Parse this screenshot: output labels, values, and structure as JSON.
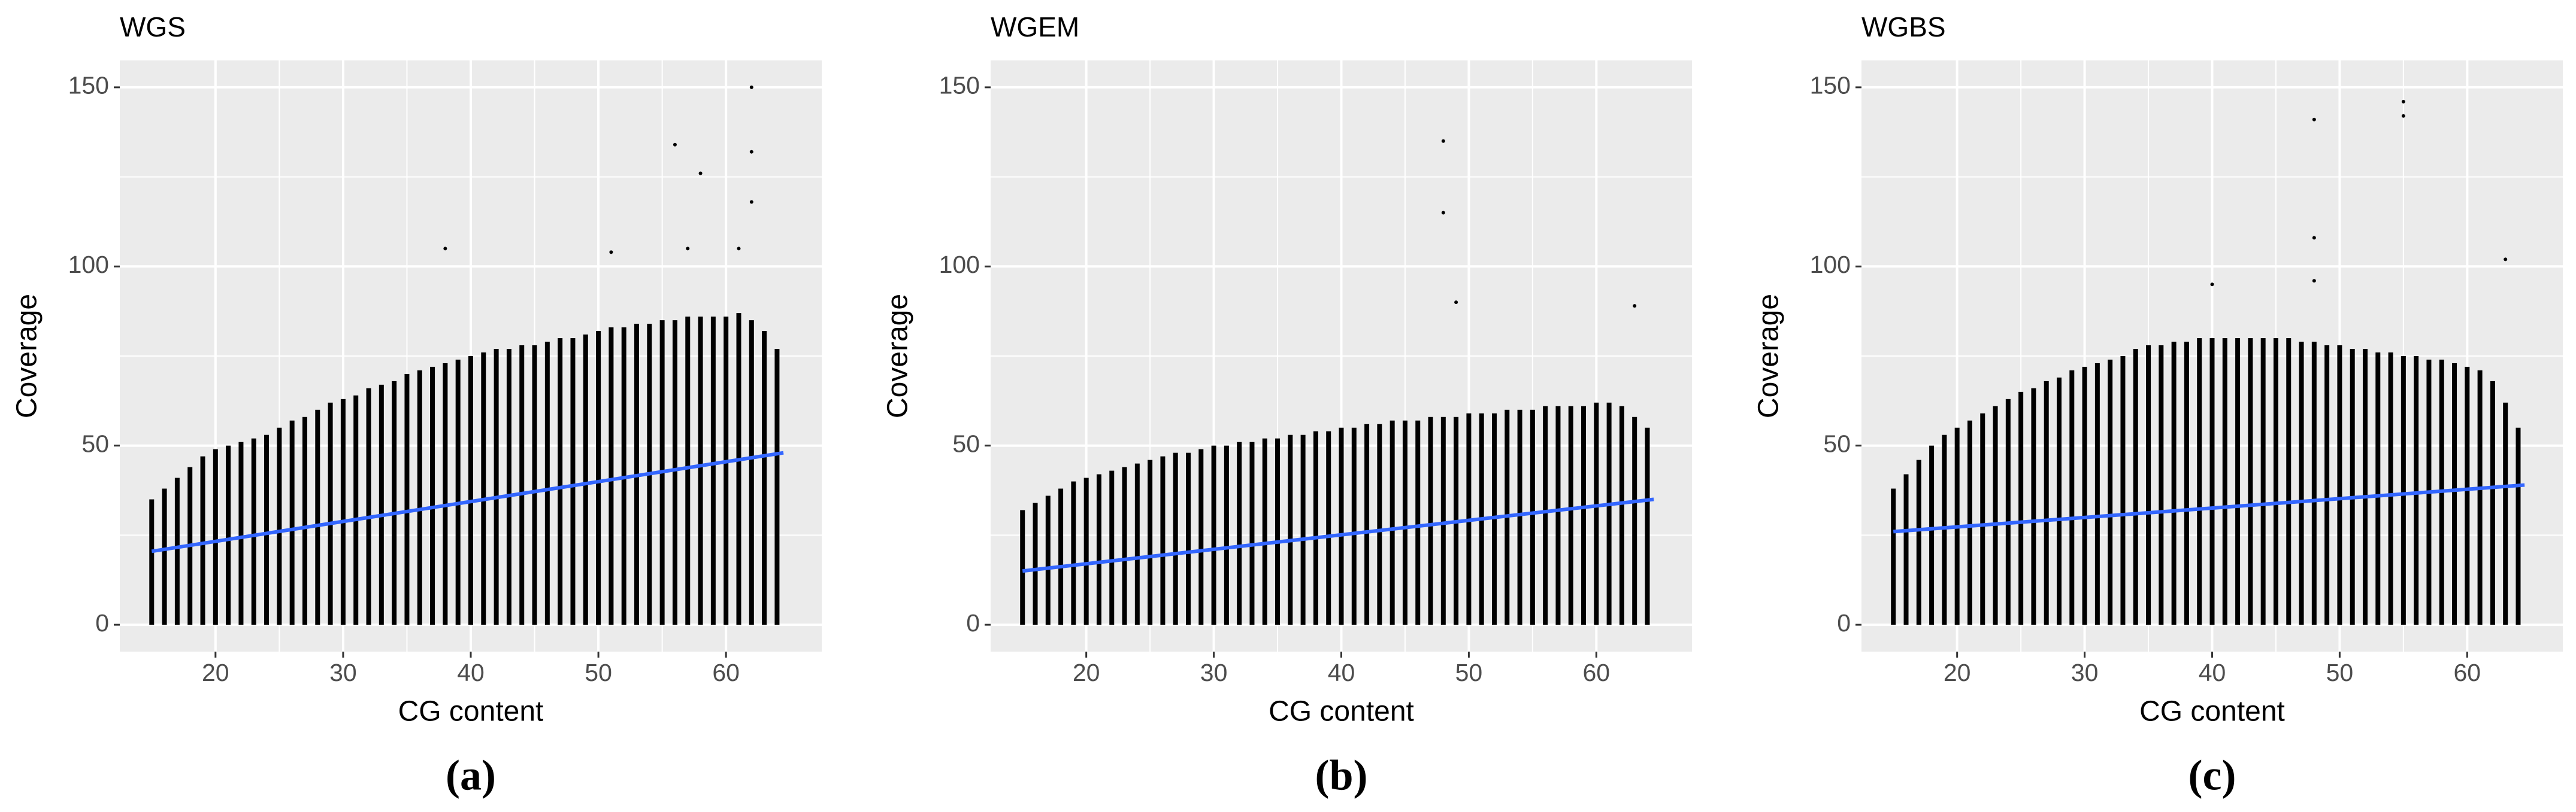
{
  "chart_data": [
    {
      "type": "scatter",
      "title": "WGS",
      "caption": "(a)",
      "xlabel": "CG content",
      "ylabel": "Coverage",
      "xlim": [
        12.5,
        67.5
      ],
      "ylim": [
        -7.5,
        157.5
      ],
      "xticks": [
        20,
        30,
        40,
        50,
        60
      ],
      "yticks": [
        0,
        50,
        100,
        150
      ],
      "grid": true,
      "point_color": "#000000",
      "fit_color": "#3366ff",
      "x": [
        15,
        16,
        17,
        18,
        19,
        20,
        21,
        22,
        23,
        24,
        25,
        26,
        27,
        28,
        29,
        30,
        31,
        32,
        33,
        34,
        35,
        36,
        37,
        38,
        39,
        40,
        41,
        42,
        43,
        44,
        45,
        46,
        47,
        48,
        49,
        50,
        51,
        52,
        53,
        54,
        55,
        56,
        57,
        58,
        59,
        60,
        61,
        62,
        63,
        64
      ],
      "high": [
        35,
        38,
        41,
        44,
        47,
        49,
        50,
        51,
        52,
        53,
        55,
        57,
        58,
        60,
        62,
        63,
        64,
        66,
        67,
        68,
        70,
        71,
        72,
        73,
        74,
        75,
        76,
        77,
        77,
        78,
        78,
        79,
        80,
        80,
        81,
        82,
        83,
        83,
        84,
        84,
        85,
        85,
        86,
        86,
        86,
        86,
        87,
        85,
        82,
        77
      ],
      "outliers_x": [
        38,
        51,
        56,
        58,
        62,
        62,
        62,
        57,
        61
      ],
      "outliers_y": [
        105,
        104,
        134,
        126,
        150,
        132,
        118,
        105,
        105
      ],
      "fit_x": [
        15,
        64.5
      ],
      "fit_y": [
        20.5,
        48
      ]
    },
    {
      "type": "scatter",
      "title": "WGEM",
      "caption": "(b)",
      "xlabel": "CG content",
      "ylabel": "Coverage",
      "xlim": [
        12.5,
        67.5
      ],
      "ylim": [
        -7.5,
        157.5
      ],
      "xticks": [
        20,
        30,
        40,
        50,
        60
      ],
      "yticks": [
        0,
        50,
        100,
        150
      ],
      "grid": true,
      "point_color": "#000000",
      "fit_color": "#3366ff",
      "x": [
        15,
        16,
        17,
        18,
        19,
        20,
        21,
        22,
        23,
        24,
        25,
        26,
        27,
        28,
        29,
        30,
        31,
        32,
        33,
        34,
        35,
        36,
        37,
        38,
        39,
        40,
        41,
        42,
        43,
        44,
        45,
        46,
        47,
        48,
        49,
        50,
        51,
        52,
        53,
        54,
        55,
        56,
        57,
        58,
        59,
        60,
        61,
        62,
        63,
        64
      ],
      "high": [
        32,
        34,
        36,
        38,
        40,
        41,
        42,
        43,
        44,
        45,
        46,
        47,
        48,
        48,
        49,
        50,
        50,
        51,
        51,
        52,
        52,
        53,
        53,
        54,
        54,
        55,
        55,
        56,
        56,
        57,
        57,
        57,
        58,
        58,
        58,
        59,
        59,
        59,
        60,
        60,
        60,
        61,
        61,
        61,
        61,
        62,
        62,
        61,
        58,
        55
      ],
      "outliers_x": [
        48,
        48,
        49,
        63
      ],
      "outliers_y": [
        135,
        115,
        90,
        89
      ],
      "fit_x": [
        15,
        64.5
      ],
      "fit_y": [
        15,
        35
      ]
    },
    {
      "type": "scatter",
      "title": "WGBS",
      "caption": "(c)",
      "xlabel": "CG content",
      "ylabel": "Coverage",
      "xlim": [
        12.5,
        67.5
      ],
      "ylim": [
        -7.5,
        157.5
      ],
      "xticks": [
        20,
        30,
        40,
        50,
        60
      ],
      "yticks": [
        0,
        50,
        100,
        150
      ],
      "grid": true,
      "point_color": "#000000",
      "fit_color": "#3366ff",
      "x": [
        15,
        16,
        17,
        18,
        19,
        20,
        21,
        22,
        23,
        24,
        25,
        26,
        27,
        28,
        29,
        30,
        31,
        32,
        33,
        34,
        35,
        36,
        37,
        38,
        39,
        40,
        41,
        42,
        43,
        44,
        45,
        46,
        47,
        48,
        49,
        50,
        51,
        52,
        53,
        54,
        55,
        56,
        57,
        58,
        59,
        60,
        61,
        62,
        63,
        64
      ],
      "high": [
        38,
        42,
        46,
        50,
        53,
        55,
        57,
        59,
        61,
        63,
        65,
        66,
        68,
        69,
        71,
        72,
        73,
        74,
        75,
        77,
        78,
        78,
        79,
        79,
        80,
        80,
        80,
        80,
        80,
        80,
        80,
        80,
        79,
        79,
        78,
        78,
        77,
        77,
        76,
        76,
        75,
        75,
        74,
        74,
        73,
        72,
        71,
        68,
        62,
        55
      ],
      "outliers_x": [
        48,
        55,
        55,
        48,
        48,
        63,
        40
      ],
      "outliers_y": [
        141,
        146,
        142,
        108,
        96,
        102,
        95
      ],
      "fit_x": [
        15,
        64.5
      ],
      "fit_y": [
        26,
        39
      ]
    }
  ]
}
